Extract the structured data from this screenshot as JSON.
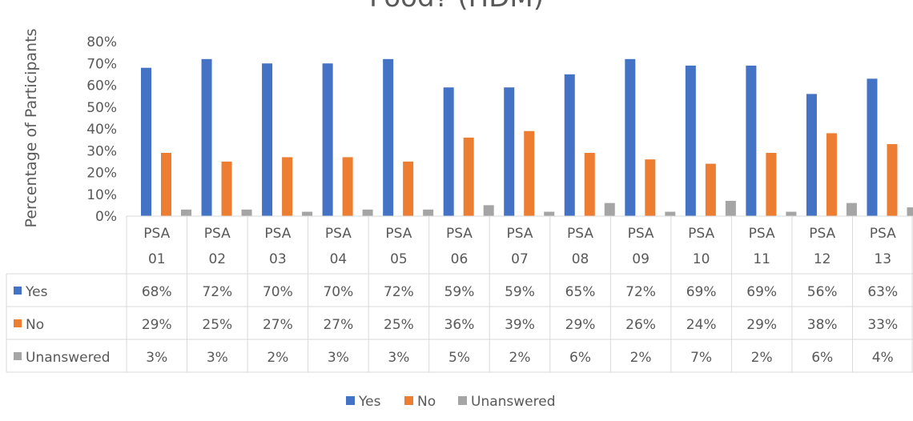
{
  "chart_data": {
    "type": "bar",
    "title": "Food? (HDM)",
    "ylabel": "Percentage of Participants",
    "xlabel": "",
    "ylim": [
      0,
      80
    ],
    "yticks": [
      "0%",
      "10%",
      "20%",
      "30%",
      "40%",
      "50%",
      "60%",
      "70%",
      "80%"
    ],
    "categories": [
      [
        "PSA",
        "01"
      ],
      [
        "PSA",
        "02"
      ],
      [
        "PSA",
        "03"
      ],
      [
        "PSA",
        "04"
      ],
      [
        "PSA",
        "05"
      ],
      [
        "PSA",
        "06"
      ],
      [
        "PSA",
        "07"
      ],
      [
        "PSA",
        "08"
      ],
      [
        "PSA",
        "09"
      ],
      [
        "PSA",
        "10"
      ],
      [
        "PSA",
        "11"
      ],
      [
        "PSA",
        "12"
      ],
      [
        "PSA",
        "13"
      ]
    ],
    "series": [
      {
        "name": "Yes",
        "color": "#4472C4",
        "values": [
          68,
          72,
          70,
          70,
          72,
          59,
          59,
          65,
          72,
          69,
          69,
          56,
          63
        ],
        "labels": [
          "68%",
          "72%",
          "70%",
          "70%",
          "72%",
          "59%",
          "59%",
          "65%",
          "72%",
          "69%",
          "69%",
          "56%",
          "63%"
        ]
      },
      {
        "name": "No",
        "color": "#ED7D31",
        "values": [
          29,
          25,
          27,
          27,
          25,
          36,
          39,
          29,
          26,
          24,
          29,
          38,
          33
        ],
        "labels": [
          "29%",
          "25%",
          "27%",
          "27%",
          "25%",
          "36%",
          "39%",
          "29%",
          "26%",
          "24%",
          "29%",
          "38%",
          "33%"
        ]
      },
      {
        "name": "Unanswered",
        "color": "#A5A5A5",
        "values": [
          3,
          3,
          2,
          3,
          3,
          5,
          2,
          6,
          2,
          7,
          2,
          6,
          4
        ],
        "labels": [
          "3%",
          "3%",
          "2%",
          "3%",
          "3%",
          "5%",
          "2%",
          "6%",
          "2%",
          "7%",
          "2%",
          "6%",
          "4%"
        ]
      }
    ],
    "data_table": true,
    "legend_position": "bottom",
    "grid": false
  }
}
